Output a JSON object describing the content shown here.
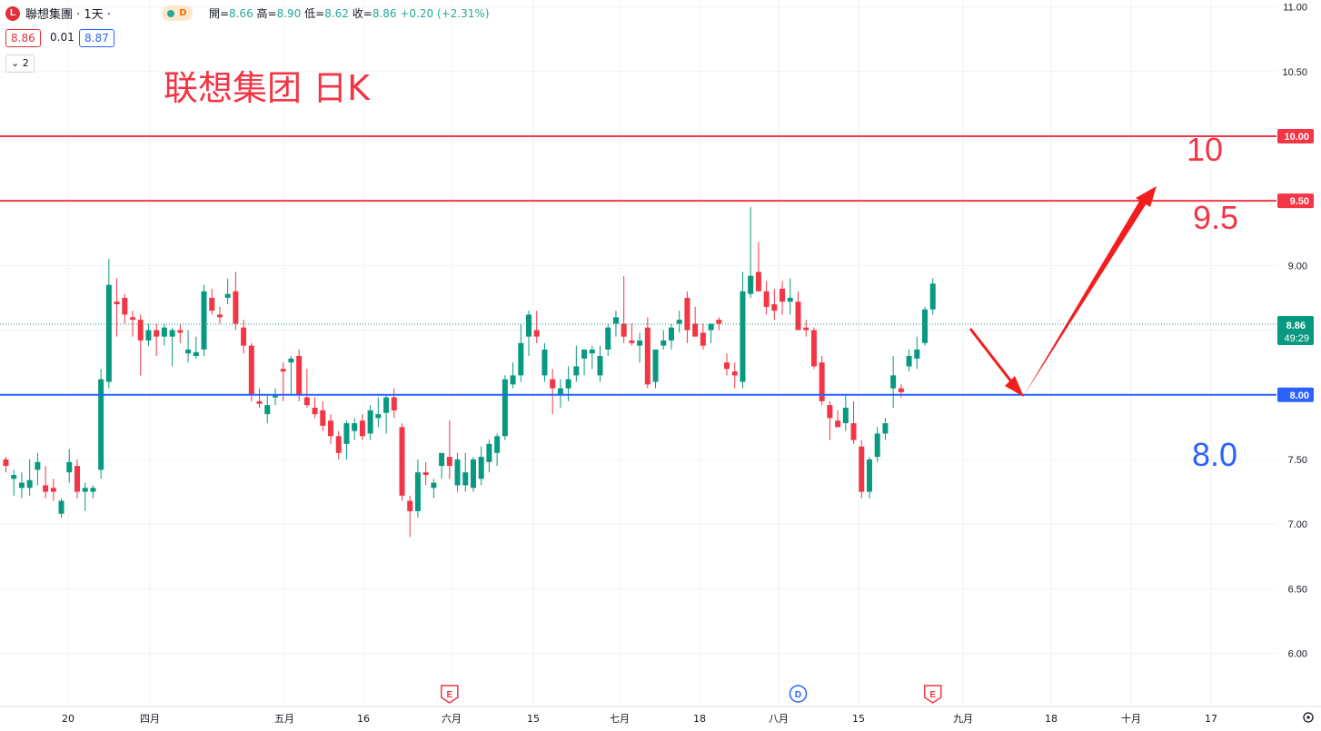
{
  "header": {
    "logo_letter": "L",
    "symbol": "聯想集團 · 1天 ·",
    "badge": "D",
    "open_label": "開=",
    "open": "8.66",
    "high_label": "高=",
    "high": "8.90",
    "low_label": "低=",
    "low": "8.62",
    "close_label": "收=",
    "close": "8.86",
    "change": "+0.20 (+2.31%)"
  },
  "price_boxes": {
    "bid": "8.86",
    "spread": "0.01",
    "ask": "8.87"
  },
  "indicator_toggle": "2",
  "chart_data": {
    "type": "candlestick",
    "title": "联想集团 日K",
    "y_axis": {
      "min": 6.0,
      "max": 11.0,
      "ticks": [
        "11.00",
        "10.50",
        "10.00",
        "9.50",
        "9.00",
        "8.50",
        "8.00",
        "7.50",
        "7.00",
        "6.50",
        "6.00"
      ]
    },
    "x_ticks": [
      "20",
      "四月",
      "五月",
      "16",
      "六月",
      "15",
      "七月",
      "18",
      "八月",
      "15",
      "九月",
      "18",
      "十月",
      "17"
    ],
    "candles": [
      [
        7.5,
        7.52,
        7.4,
        7.45
      ],
      [
        7.35,
        7.42,
        7.22,
        7.38
      ],
      [
        7.28,
        7.4,
        7.2,
        7.32
      ],
      [
        7.28,
        7.5,
        7.22,
        7.34
      ],
      [
        7.42,
        7.55,
        7.3,
        7.48
      ],
      [
        7.3,
        7.45,
        7.2,
        7.25
      ],
      [
        7.28,
        7.35,
        7.18,
        7.25
      ],
      [
        7.08,
        7.2,
        7.05,
        7.18
      ],
      [
        7.4,
        7.58,
        7.32,
        7.48
      ],
      [
        7.45,
        7.5,
        7.2,
        7.25
      ],
      [
        7.25,
        7.32,
        7.1,
        7.28
      ],
      [
        7.25,
        7.3,
        7.2,
        7.28
      ],
      [
        7.42,
        8.2,
        7.35,
        8.12
      ],
      [
        8.1,
        9.05,
        8.05,
        8.85
      ],
      [
        8.72,
        8.9,
        8.45,
        8.7
      ],
      [
        8.75,
        8.78,
        8.55,
        8.62
      ],
      [
        8.6,
        8.65,
        8.45,
        8.58
      ],
      [
        8.58,
        8.62,
        8.15,
        8.42
      ],
      [
        8.42,
        8.55,
        8.38,
        8.5
      ],
      [
        8.5,
        8.55,
        8.3,
        8.45
      ],
      [
        8.45,
        8.55,
        8.38,
        8.52
      ],
      [
        8.45,
        8.52,
        8.22,
        8.5
      ],
      [
        8.5,
        8.55,
        8.4,
        8.48
      ],
      [
        8.32,
        8.5,
        8.25,
        8.35
      ],
      [
        8.3,
        8.45,
        8.28,
        8.33
      ],
      [
        8.35,
        8.85,
        8.3,
        8.8
      ],
      [
        8.75,
        8.82,
        8.62,
        8.65
      ],
      [
        8.62,
        8.68,
        8.55,
        8.6
      ],
      [
        8.75,
        8.9,
        8.7,
        8.78
      ],
      [
        8.8,
        8.95,
        8.5,
        8.55
      ],
      [
        8.52,
        8.58,
        8.32,
        8.38
      ],
      [
        8.38,
        8.4,
        7.95,
        8.0
      ],
      [
        7.95,
        8.05,
        7.9,
        7.93
      ],
      [
        7.85,
        8.0,
        7.78,
        7.92
      ],
      [
        7.98,
        8.05,
        7.92,
        8.0
      ],
      [
        8.2,
        8.25,
        7.95,
        8.18
      ],
      [
        8.25,
        8.3,
        8.0,
        8.28
      ],
      [
        8.3,
        8.35,
        7.95,
        8.0
      ],
      [
        7.98,
        8.2,
        7.9,
        7.92
      ],
      [
        7.9,
        7.98,
        7.82,
        7.85
      ],
      [
        7.88,
        7.95,
        7.72,
        7.76
      ],
      [
        7.8,
        7.85,
        7.62,
        7.68
      ],
      [
        7.68,
        7.72,
        7.5,
        7.55
      ],
      [
        7.62,
        7.8,
        7.5,
        7.78
      ],
      [
        7.72,
        7.82,
        7.65,
        7.78
      ],
      [
        7.8,
        7.85,
        7.65,
        7.68
      ],
      [
        7.7,
        7.92,
        7.65,
        7.88
      ],
      [
        7.82,
        7.98,
        7.75,
        7.85
      ],
      [
        7.86,
        8.0,
        7.7,
        7.98
      ],
      [
        7.98,
        8.05,
        7.82,
        7.88
      ],
      [
        7.75,
        7.78,
        7.18,
        7.22
      ],
      [
        7.18,
        7.22,
        6.9,
        7.1
      ],
      [
        7.1,
        7.5,
        7.05,
        7.4
      ],
      [
        7.4,
        7.48,
        7.3,
        7.38
      ],
      [
        7.28,
        7.35,
        7.2,
        7.32
      ],
      [
        7.45,
        7.55,
        7.35,
        7.55
      ],
      [
        7.52,
        7.8,
        7.35,
        7.45
      ],
      [
        7.3,
        7.55,
        7.25,
        7.5
      ],
      [
        7.3,
        7.55,
        7.25,
        7.4
      ],
      [
        7.28,
        7.52,
        7.25,
        7.5
      ],
      [
        7.35,
        7.6,
        7.3,
        7.52
      ],
      [
        7.48,
        7.65,
        7.4,
        7.62
      ],
      [
        7.55,
        7.7,
        7.45,
        7.68
      ],
      [
        7.68,
        8.15,
        7.65,
        8.12
      ],
      [
        8.08,
        8.25,
        8.05,
        8.15
      ],
      [
        8.15,
        8.55,
        8.1,
        8.4
      ],
      [
        8.45,
        8.65,
        8.3,
        8.62
      ],
      [
        8.5,
        8.65,
        8.4,
        8.45
      ],
      [
        8.15,
        8.4,
        8.1,
        8.35
      ],
      [
        8.12,
        8.2,
        7.85,
        8.05
      ],
      [
        8.0,
        8.12,
        7.9,
        8.05
      ],
      [
        8.05,
        8.22,
        7.95,
        8.12
      ],
      [
        8.15,
        8.38,
        8.1,
        8.22
      ],
      [
        8.28,
        8.35,
        8.15,
        8.35
      ],
      [
        8.32,
        8.38,
        8.2,
        8.35
      ],
      [
        8.15,
        8.38,
        8.1,
        8.3
      ],
      [
        8.35,
        8.55,
        8.3,
        8.52
      ],
      [
        8.55,
        8.65,
        8.45,
        8.6
      ],
      [
        8.55,
        8.92,
        8.4,
        8.45
      ],
      [
        8.42,
        8.55,
        8.38,
        8.4
      ],
      [
        8.38,
        8.48,
        8.25,
        8.42
      ],
      [
        8.52,
        8.6,
        8.05,
        8.08
      ],
      [
        8.1,
        8.35,
        8.05,
        8.35
      ],
      [
        8.38,
        8.5,
        8.35,
        8.42
      ],
      [
        8.42,
        8.55,
        8.35,
        8.52
      ],
      [
        8.55,
        8.65,
        8.48,
        8.58
      ],
      [
        8.75,
        8.8,
        8.4,
        8.5
      ],
      [
        8.55,
        8.68,
        8.45,
        8.45
      ],
      [
        8.48,
        8.55,
        8.35,
        8.38
      ],
      [
        8.5,
        8.55,
        8.4,
        8.55
      ],
      [
        8.58,
        8.6,
        8.5,
        8.55
      ],
      [
        8.25,
        8.32,
        8.15,
        8.2
      ],
      [
        8.18,
        8.25,
        8.05,
        8.15
      ],
      [
        8.1,
        8.95,
        8.05,
        8.8
      ],
      [
        8.78,
        9.45,
        8.75,
        8.92
      ],
      [
        8.95,
        9.18,
        8.8,
        8.8
      ],
      [
        8.8,
        8.88,
        8.62,
        8.68
      ],
      [
        8.7,
        8.82,
        8.58,
        8.65
      ],
      [
        8.82,
        8.88,
        8.62,
        8.72
      ],
      [
        8.72,
        8.9,
        8.62,
        8.75
      ],
      [
        8.72,
        8.8,
        8.5,
        8.5
      ],
      [
        8.52,
        8.58,
        8.45,
        8.5
      ],
      [
        8.5,
        8.52,
        8.2,
        8.22
      ],
      [
        8.25,
        8.3,
        7.92,
        7.95
      ],
      [
        7.92,
        7.95,
        7.65,
        7.82
      ],
      [
        7.8,
        7.88,
        7.75,
        7.75
      ],
      [
        7.78,
        8.0,
        7.72,
        7.9
      ],
      [
        7.78,
        7.95,
        7.62,
        7.65
      ],
      [
        7.6,
        7.65,
        7.2,
        7.25
      ],
      [
        7.25,
        7.52,
        7.2,
        7.5
      ],
      [
        7.52,
        7.75,
        7.48,
        7.7
      ],
      [
        7.7,
        7.82,
        7.65,
        7.78
      ],
      [
        8.05,
        8.3,
        7.9,
        8.15
      ],
      [
        8.05,
        8.08,
        7.98,
        8.02
      ],
      [
        8.22,
        8.35,
        8.18,
        8.3
      ],
      [
        8.28,
        8.45,
        8.2,
        8.35
      ],
      [
        8.4,
        8.68,
        8.38,
        8.66
      ],
      [
        8.66,
        8.9,
        8.62,
        8.86
      ]
    ],
    "horizontal_lines": [
      {
        "price": 10.0,
        "label": "10.00",
        "color": "#f23645"
      },
      {
        "price": 9.5,
        "label": "9.50",
        "color": "#f23645"
      },
      {
        "price": 8.0,
        "label": "8.00",
        "color": "#2962ff"
      }
    ],
    "line_annotations": [
      {
        "text": "10",
        "color": "#f23645"
      },
      {
        "text": "9.5",
        "color": "#f23645"
      },
      {
        "text": "8.0",
        "color": "#2962ff"
      }
    ],
    "current_price": {
      "value": 8.86,
      "label": "8.86",
      "countdown": "49:29",
      "color": "#089981"
    },
    "events": [
      {
        "letter": "E",
        "color": "#f23645",
        "x_index": 56
      },
      {
        "letter": "D",
        "color": "#2962ff",
        "x_index": 100
      },
      {
        "letter": "E",
        "color": "#f23645",
        "x_index": 117
      }
    ],
    "colors": {
      "up": "#089981",
      "down": "#f23645",
      "grid": "#f0f3fa",
      "axis_text": "#131722"
    }
  }
}
